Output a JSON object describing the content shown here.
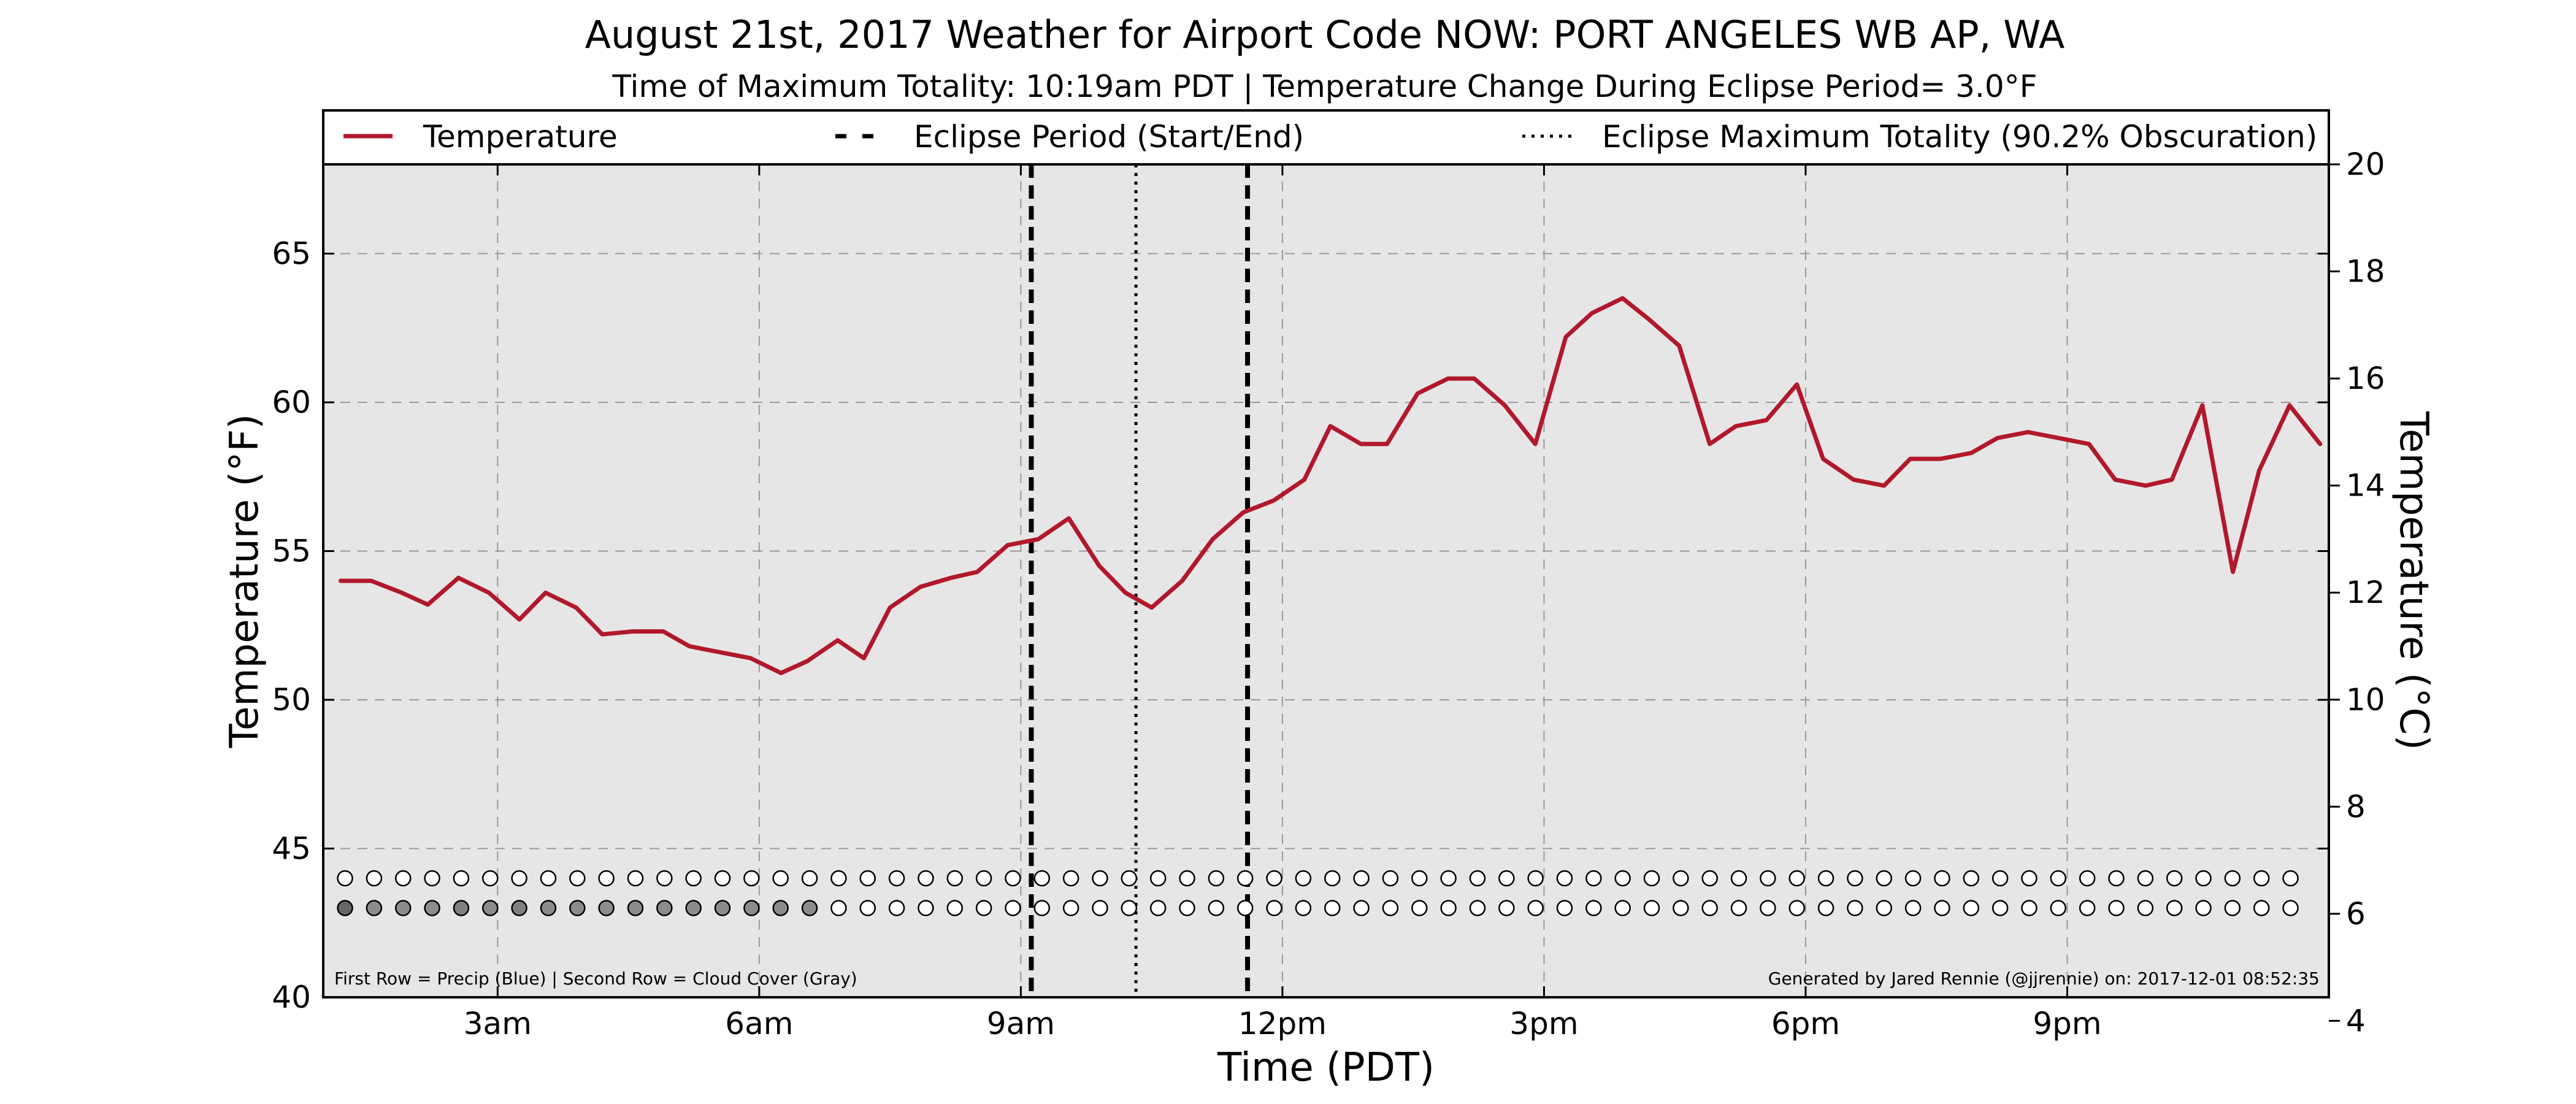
{
  "chart_data": {
    "type": "line",
    "title": "August 21st, 2017 Weather for Airport Code NOW: PORT ANGELES WB AP, WA",
    "subtitle": "Time of Maximum Totality: 10:19am PDT | Temperature Change During Eclipse Period= 3.0°F",
    "xlabel": "Time (PDT)",
    "ylabel": "Temperature (°F)",
    "ylabel_right": "Temperature (°C)",
    "xlim": [
      1.0,
      24.0
    ],
    "ylim": [
      40,
      68
    ],
    "ylim_right": [
      4.44,
      20.0
    ],
    "x_ticks": [
      {
        "x": 3,
        "label": "3am"
      },
      {
        "x": 6,
        "label": "6am"
      },
      {
        "x": 9,
        "label": "9am"
      },
      {
        "x": 12,
        "label": "12pm"
      },
      {
        "x": 15,
        "label": "3pm"
      },
      {
        "x": 18,
        "label": "6pm"
      },
      {
        "x": 21,
        "label": "9pm"
      }
    ],
    "y_ticks": [
      40,
      45,
      50,
      55,
      60,
      65
    ],
    "y_ticks_right": [
      4,
      6,
      8,
      10,
      12,
      14,
      16,
      18,
      20
    ],
    "grid": true,
    "legend_position": "top",
    "legend": [
      {
        "label": "Temperature",
        "style": "solid",
        "color": "#b2182b"
      },
      {
        "label": "Eclipse Period (Start/End)",
        "style": "dashed",
        "color": "#000000"
      },
      {
        "label": "Eclipse Maximum Totality (90.2% Obscuration)",
        "style": "dotted",
        "color": "#000000"
      }
    ],
    "series": [
      {
        "name": "Temperature",
        "color": "#b2182b",
        "x": [
          1.2,
          1.55,
          1.9,
          2.2,
          2.55,
          2.9,
          3.25,
          3.55,
          3.9,
          4.2,
          4.55,
          4.9,
          5.2,
          5.55,
          5.9,
          6.25,
          6.55,
          6.9,
          7.2,
          7.5,
          7.85,
          8.2,
          8.5,
          8.85,
          9.2,
          9.55,
          9.9,
          10.2,
          10.5,
          10.85,
          11.2,
          11.55,
          11.9,
          12.25,
          12.55,
          12.9,
          13.2,
          13.55,
          13.9,
          14.2,
          14.55,
          14.9,
          15.25,
          15.55,
          15.9,
          16.2,
          16.55,
          16.9,
          17.2,
          17.55,
          17.9,
          18.2,
          18.55,
          18.9,
          19.2,
          19.55,
          19.9,
          20.2,
          20.55,
          20.9,
          21.25,
          21.55,
          21.9,
          22.2,
          22.55,
          22.9,
          23.2,
          23.55,
          23.9
        ],
        "values": [
          54.0,
          54.0,
          53.6,
          53.2,
          54.1,
          53.6,
          52.7,
          53.6,
          53.1,
          52.2,
          52.3,
          52.3,
          51.8,
          51.6,
          51.4,
          50.9,
          51.3,
          52.0,
          51.4,
          53.1,
          53.8,
          54.1,
          54.3,
          55.2,
          55.4,
          56.1,
          54.5,
          53.6,
          53.1,
          54.0,
          55.4,
          56.3,
          56.7,
          57.4,
          59.2,
          58.6,
          58.6,
          60.3,
          60.8,
          60.8,
          59.9,
          58.6,
          62.2,
          63.0,
          63.5,
          62.8,
          61.9,
          58.6,
          59.2,
          59.4,
          60.6,
          58.1,
          57.4,
          57.2,
          58.1,
          58.1,
          58.3,
          58.8,
          59.0,
          58.8,
          58.6,
          57.4,
          57.2,
          57.4,
          59.9,
          54.3,
          57.7,
          59.9,
          58.6
        ]
      }
    ],
    "eclipse_start": 9.12,
    "eclipse_max": 10.32,
    "eclipse_end": 11.6,
    "dot_rows": {
      "x_start": 1.25,
      "x_step": 0.333,
      "count": 68,
      "precip_row_level": 44.0,
      "cloud_row_level": 43.0,
      "precip_values": [
        0,
        0,
        0,
        0,
        0,
        0,
        0,
        0,
        0,
        0,
        0,
        0,
        0,
        0,
        0,
        0,
        0,
        0,
        0,
        0,
        0,
        0,
        0,
        0,
        0,
        0,
        0,
        0,
        0,
        0,
        0,
        0,
        0,
        0,
        0,
        0,
        0,
        0,
        0,
        0,
        0,
        0,
        0,
        0,
        0,
        0,
        0,
        0,
        0,
        0,
        0,
        0,
        0,
        0,
        0,
        0,
        0,
        0,
        0,
        0,
        0,
        0,
        0,
        0,
        0,
        0,
        0,
        0
      ],
      "cloud_values": [
        0.6,
        0.45,
        0.45,
        0.45,
        0.5,
        0.45,
        0.5,
        0.45,
        0.45,
        0.45,
        0.45,
        0.45,
        0.45,
        0.45,
        0.45,
        0.45,
        0.45,
        0,
        0,
        0,
        0,
        0,
        0,
        0,
        0,
        0,
        0,
        0,
        0,
        0,
        0,
        0,
        0,
        0,
        0,
        0,
        0,
        0,
        0,
        0,
        0,
        0,
        0,
        0,
        0,
        0,
        0,
        0,
        0,
        0,
        0,
        0,
        0,
        0,
        0,
        0,
        0,
        0,
        0,
        0,
        0,
        0,
        0,
        0,
        0,
        0,
        0,
        0
      ]
    },
    "footnote_left": "First Row = Precip (Blue) | Second Row = Cloud Cover (Gray)",
    "footnote_right": "Generated by Jared Rennie (@jjrennie) on: 2017-12-01 08:52:35"
  }
}
